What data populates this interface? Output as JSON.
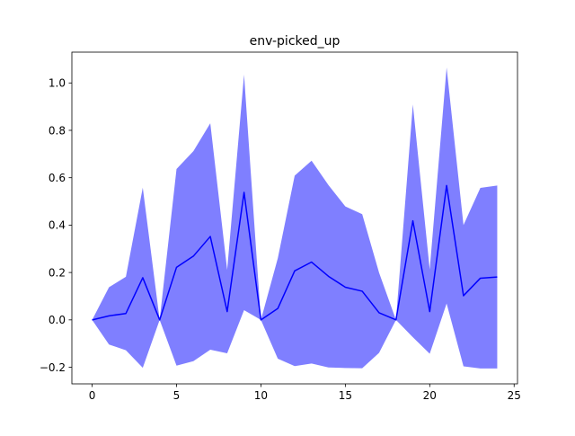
{
  "chart_data": {
    "type": "area",
    "title": "env-picked_up",
    "xlabel": "",
    "ylabel": "",
    "xlim": [
      -1.2,
      25.2
    ],
    "ylim": [
      -0.27,
      1.13
    ],
    "xticks": [
      0,
      5,
      10,
      15,
      20,
      25
    ],
    "xtick_labels": [
      "0",
      "5",
      "10",
      "15",
      "20",
      "25"
    ],
    "yticks": [
      -0.2,
      0.0,
      0.2,
      0.4,
      0.6,
      0.8,
      1.0
    ],
    "ytick_labels": [
      "−0.2",
      "0.0",
      "0.2",
      "0.4",
      "0.6",
      "0.8",
      "1.0"
    ],
    "grid": false,
    "x": [
      0,
      1,
      2,
      3,
      4,
      5,
      6,
      7,
      8,
      9,
      10,
      11,
      12,
      13,
      14,
      15,
      16,
      17,
      18,
      19,
      20,
      21,
      22,
      23,
      24
    ],
    "series": [
      {
        "color": "#0000ff",
        "values": [
          0.0,
          0.017,
          0.027,
          0.178,
          0.0,
          0.222,
          0.269,
          0.352,
          0.035,
          0.538,
          0.0,
          0.048,
          0.207,
          0.244,
          0.184,
          0.138,
          0.121,
          0.03,
          0.0,
          0.418,
          0.035,
          0.567,
          0.102,
          0.176,
          0.181
        ]
      }
    ],
    "band": {
      "color": "#0000ff",
      "opacity": 0.5,
      "upper": [
        0.0,
        0.138,
        0.182,
        0.558,
        0.0,
        0.637,
        0.712,
        0.83,
        0.211,
        1.035,
        0.0,
        0.26,
        0.609,
        0.672,
        0.569,
        0.479,
        0.446,
        0.199,
        0.0,
        0.909,
        0.213,
        1.065,
        0.4,
        0.557,
        0.567
      ],
      "lower": [
        0.0,
        -0.104,
        -0.128,
        -0.202,
        0.0,
        -0.193,
        -0.174,
        -0.126,
        -0.141,
        0.041,
        0.0,
        -0.164,
        -0.195,
        -0.184,
        -0.201,
        -0.203,
        -0.204,
        -0.139,
        0.0,
        -0.073,
        -0.143,
        0.069,
        -0.196,
        -0.205,
        -0.205
      ]
    }
  }
}
